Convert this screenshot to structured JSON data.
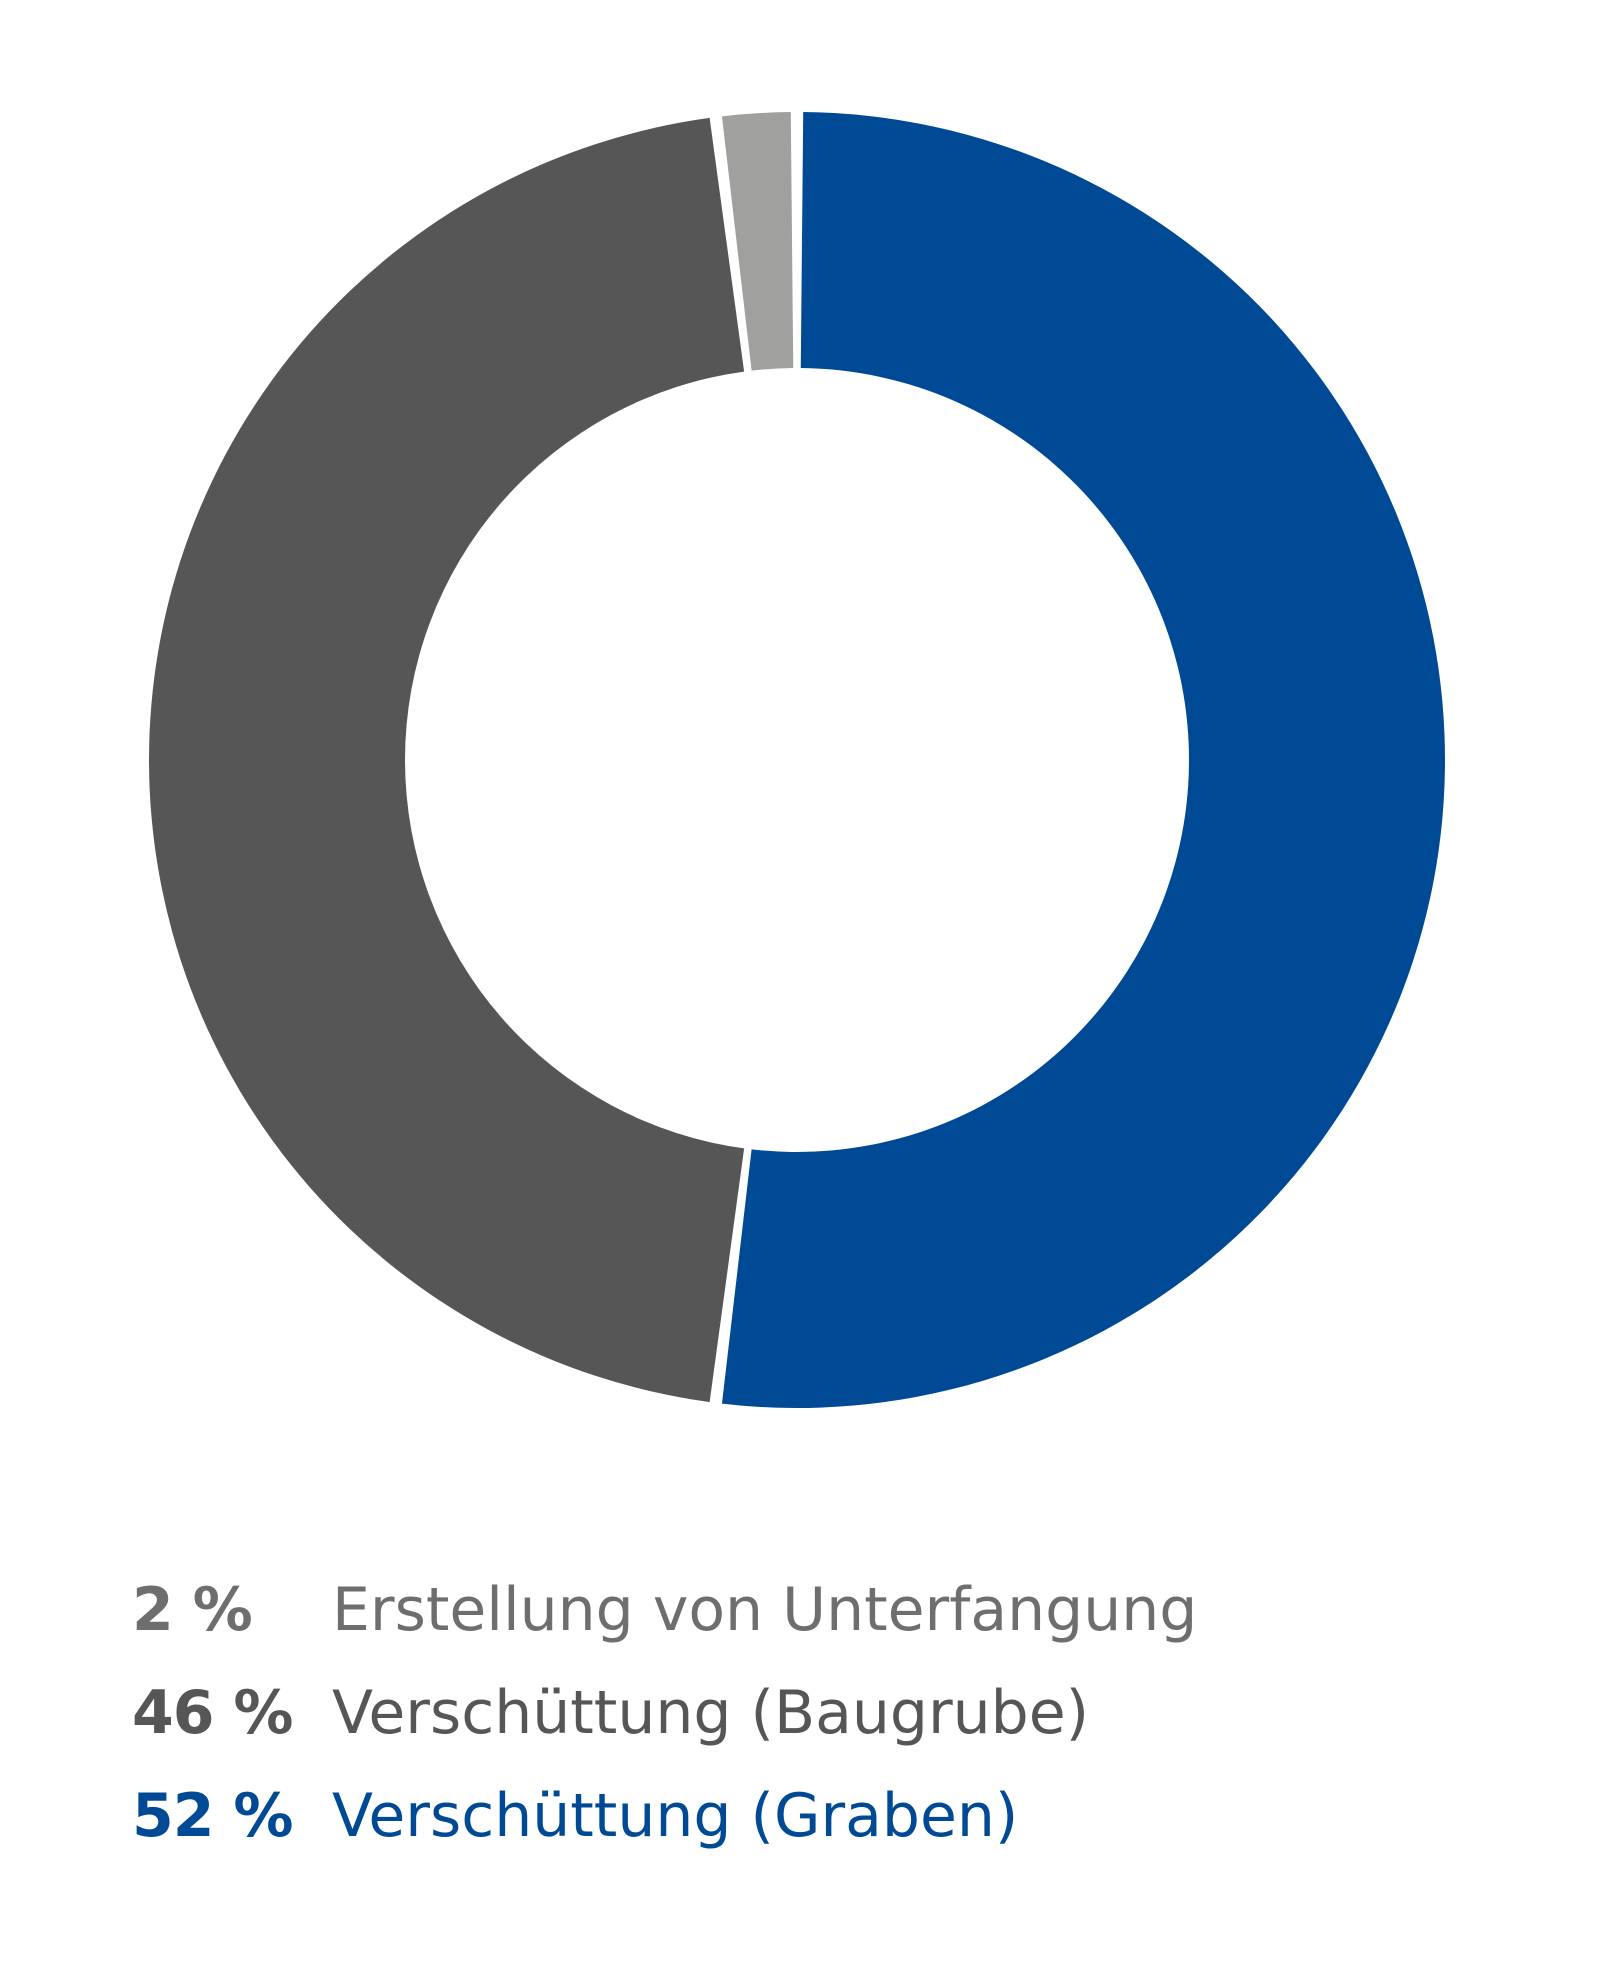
{
  "chart_data": {
    "type": "pie",
    "style": "donut",
    "start_angle_deg": 0,
    "direction": "clockwise",
    "slices": [
      {
        "label": "Verschüttung (Graben)",
        "value": 52,
        "value_label": "52 %",
        "color": "#004994"
      },
      {
        "label": "Verschüttung (Baugrube)",
        "value": 46,
        "value_label": "46 %",
        "color": "#575656"
      },
      {
        "label": "Erstellung von Unterfangung",
        "value": 2,
        "value_label": "2 %",
        "color": "#a0a09f"
      }
    ],
    "legend": {
      "placement": "bottom-left",
      "order": [
        2,
        1,
        0
      ],
      "text_colors": [
        "#6e6e6e",
        "#575656",
        "#004994"
      ]
    }
  }
}
